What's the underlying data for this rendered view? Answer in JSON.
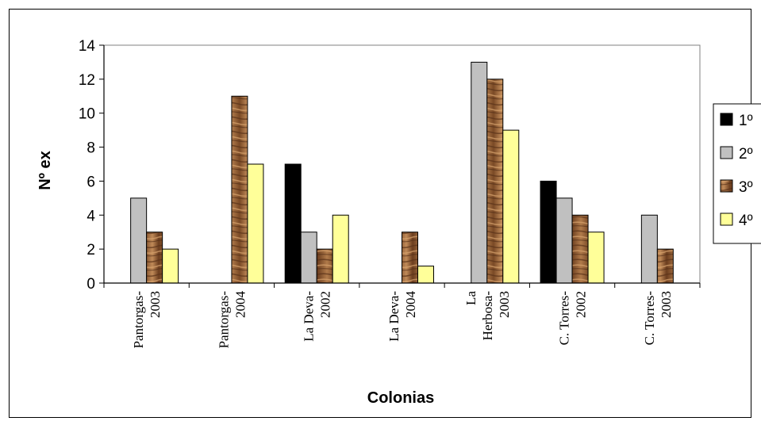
{
  "chart_data": {
    "type": "bar",
    "title": "",
    "xlabel": "Colonias",
    "ylabel": "Nº ex",
    "ylim": [
      0,
      14
    ],
    "yticks": [
      0,
      2,
      4,
      6,
      8,
      10,
      12,
      14
    ],
    "grid": false,
    "legend_position": "right",
    "categories": [
      [
        "Pantorgas-",
        "2003"
      ],
      [
        "Pantorgas-",
        "2004"
      ],
      [
        "La Deva-",
        "2002"
      ],
      [
        "La Deva-",
        "2004"
      ],
      [
        "La",
        "Herbosa-",
        "2003"
      ],
      [
        "C. Torres-",
        "2002"
      ],
      [
        "C. Torres-",
        "2003"
      ]
    ],
    "series": [
      {
        "name": "1º",
        "color": "#000000",
        "pattern": "solid",
        "values": [
          0,
          0,
          7,
          0,
          0,
          6,
          0
        ]
      },
      {
        "name": "2º",
        "color": "#c0c0c0",
        "pattern": "solid",
        "values": [
          5,
          0,
          3,
          0,
          13,
          5,
          4
        ]
      },
      {
        "name": "3º",
        "color": "#8b5a33",
        "pattern": "wood",
        "values": [
          3,
          11,
          2,
          3,
          12,
          4,
          2
        ]
      },
      {
        "name": "4º",
        "color": "#ffff99",
        "pattern": "solid",
        "values": [
          2,
          7,
          4,
          1,
          9,
          3,
          0
        ]
      }
    ]
  }
}
